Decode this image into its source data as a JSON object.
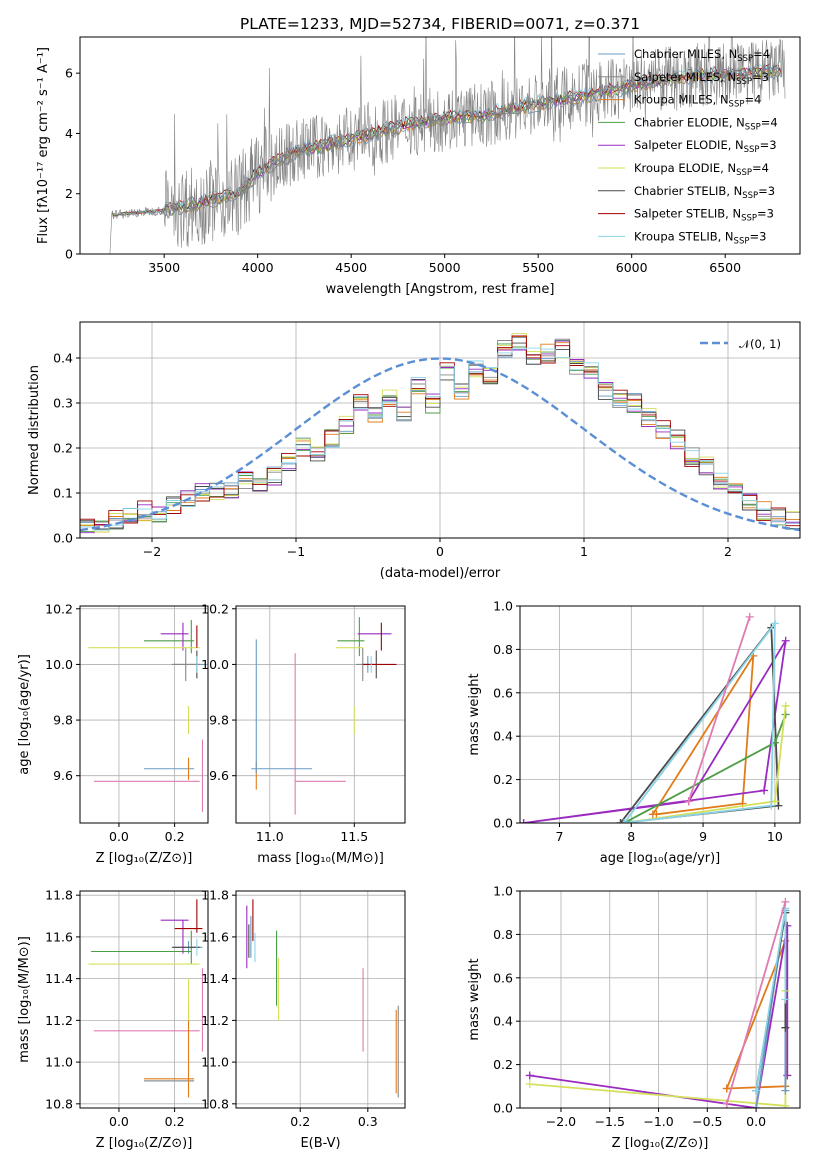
{
  "figure_title": "PLATE=1233, MJD=52734, FIBERID=0071, z=0.371",
  "series_colors": [
    "#6a9ac4",
    "#888888",
    "#e07b1a",
    "#4c9e45",
    "#9a2ac0",
    "#d4e05a",
    "#4a4a4a",
    "#a00000",
    "#8ad3e6"
  ],
  "chart_data": [
    {
      "id": "spectrum",
      "type": "line",
      "title": "PLATE=1233, MJD=52734, FIBERID=0071, z=0.371",
      "xlabel": "wavelength [Angstrom, rest frame]",
      "ylabel": "Flux [fλ10⁻¹⁷ erg cm⁻² s⁻¹ A⁻¹]",
      "xlim": [
        3050,
        6900
      ],
      "ylim": [
        0,
        7.2
      ],
      "xticks": [
        3500,
        4000,
        4500,
        5000,
        5500,
        6000,
        6500
      ],
      "yticks": [
        0,
        2,
        4,
        6
      ],
      "grid": false,
      "legend_position": "top-right",
      "observed_anchors": {
        "x": [
          3220,
          3500,
          3700,
          3900,
          4000,
          4200,
          4500,
          4800,
          5000,
          5200,
          5500,
          5800,
          6000,
          6300,
          6600,
          6800
        ],
        "y": [
          1.3,
          1.45,
          1.7,
          2.0,
          2.7,
          3.4,
          3.8,
          4.3,
          4.5,
          4.6,
          5.0,
          5.3,
          5.6,
          5.9,
          6.0,
          6.1
        ]
      },
      "observed_color": "#808080",
      "series": [
        {
          "name": "Chabrier MILES, N_SSP=4"
        },
        {
          "name": "Salpeter MILES, N_SSP=3"
        },
        {
          "name": "Kroupa MILES, N_SSP=4"
        },
        {
          "name": "Chabrier ELODIE, N_SSP=4"
        },
        {
          "name": "Salpeter ELODIE, N_SSP=3"
        },
        {
          "name": "Kroupa ELODIE, N_SSP=4"
        },
        {
          "name": "Chabrier STELIB, N_SSP=3"
        },
        {
          "name": "Salpeter STELIB, N_SSP=3"
        },
        {
          "name": "Kroupa STELIB, N_SSP=3"
        }
      ],
      "legend_entries": [
        {
          "label": "Chabrier MILES, N",
          "sub": "SSP",
          "value": "=4"
        },
        {
          "label": "Salpeter MILES, N",
          "sub": "SSP",
          "value": "=3"
        },
        {
          "label": "Kroupa MILES, N",
          "sub": "SSP",
          "value": "=4"
        },
        {
          "label": "Chabrier ELODIE, N",
          "sub": "SSP",
          "value": "=4"
        },
        {
          "label": "Salpeter ELODIE, N",
          "sub": "SSP",
          "value": "=3"
        },
        {
          "label": "Kroupa ELODIE, N",
          "sub": "SSP",
          "value": "=4"
        },
        {
          "label": "Chabrier STELIB, N",
          "sub": "SSP",
          "value": "=3"
        },
        {
          "label": "Salpeter STELIB, N",
          "sub": "SSP",
          "value": "=3"
        },
        {
          "label": "Kroupa STELIB, N",
          "sub": "SSP",
          "value": "=3"
        }
      ]
    },
    {
      "id": "residuals",
      "type": "histogram",
      "xlabel": "(data-model)/error",
      "ylabel": "Normed distribution",
      "xlim": [
        -2.5,
        2.5
      ],
      "ylim": [
        0,
        0.48
      ],
      "xticks": [
        -2,
        -1,
        0,
        1,
        2
      ],
      "yticks": [
        0.0,
        0.1,
        0.2,
        0.3,
        0.4
      ],
      "grid": true,
      "legend_position": "top-right",
      "legend_label": "𝒩(0, 1)",
      "gaussian": {
        "mean": 0,
        "sigma": 1,
        "color": "#5b8fd6"
      },
      "bin_edges_start": -2.5,
      "bin_width": 0.1,
      "nbins": 50,
      "base_hist": [
        0.03,
        0.02,
        0.04,
        0.05,
        0.06,
        0.05,
        0.07,
        0.09,
        0.1,
        0.1,
        0.11,
        0.13,
        0.11,
        0.14,
        0.17,
        0.2,
        0.19,
        0.22,
        0.25,
        0.3,
        0.28,
        0.31,
        0.27,
        0.34,
        0.3,
        0.37,
        0.32,
        0.38,
        0.36,
        0.42,
        0.44,
        0.4,
        0.41,
        0.42,
        0.38,
        0.37,
        0.33,
        0.31,
        0.3,
        0.27,
        0.24,
        0.22,
        0.18,
        0.16,
        0.13,
        0.11,
        0.08,
        0.06,
        0.05,
        0.04
      ]
    },
    {
      "id": "age_vs_Z",
      "type": "errorbar",
      "xlabel": "Z [log₁₀(Z/Z⊙)]",
      "ylabel": "age  [log₁₀(age/yr)]",
      "xlim": [
        -0.14,
        0.32
      ],
      "ylim": [
        9.43,
        10.21
      ],
      "xticks": [
        0.0,
        0.2
      ],
      "yticks": [
        9.6,
        9.8,
        10.0,
        10.2
      ],
      "grid": true,
      "points": [
        {
          "s": 0,
          "x": 0.25,
          "y": 10.0,
          "xe": 0.06,
          "ye": 0.0
        },
        {
          "s": 0,
          "x": 0.18,
          "y": 9.625,
          "xe": 0.09,
          "ye": 0.0
        },
        {
          "s": 1,
          "x": 0.24,
          "y": 10.0,
          "xe": 0.05,
          "ye": 0.06
        },
        {
          "s": 2,
          "x": 0.25,
          "y": 9.625,
          "xe": 0.0,
          "ye": 0.04
        },
        {
          "s": 3,
          "x": 0.18,
          "y": 10.085,
          "xe": 0.09,
          "ye": 0.0
        },
        {
          "s": 3,
          "x": 0.26,
          "y": 10.1,
          "xe": 0.0,
          "ye": 0.06
        },
        {
          "s": 4,
          "x": 0.2,
          "y": 10.11,
          "xe": 0.05,
          "ye": 0.0
        },
        {
          "s": 4,
          "x": 0.23,
          "y": 10.1,
          "xe": 0.0,
          "ye": 0.05
        },
        {
          "s": 5,
          "x": 0.09,
          "y": 10.06,
          "xe": 0.2,
          "ye": 0.0
        },
        {
          "s": 5,
          "x": 0.25,
          "y": 9.8,
          "xe": 0.0,
          "ye": 0.05
        },
        {
          "s": 6,
          "x": 0.28,
          "y": 10.0,
          "xe": 0.0,
          "ye": 0.05
        },
        {
          "s": 7,
          "x": 0.28,
          "y": 10.1,
          "xe": 0.0,
          "ye": 0.04
        },
        {
          "s": 8,
          "x": 0.28,
          "y": 10.0,
          "xe": 0.0,
          "ye": 0.03
        }
      ],
      "pink_points": [
        {
          "x": 0.1,
          "y": 9.58,
          "xe": 0.19,
          "ye": 0.0
        },
        {
          "x": 0.3,
          "y": 9.6,
          "xe": 0.0,
          "ye": 0.13
        }
      ]
    },
    {
      "id": "age_vs_mass",
      "type": "errorbar",
      "xlabel": "mass [log₁₀(M/M⊙)]",
      "xlim": [
        10.8,
        11.8
      ],
      "ylim": [
        9.43,
        10.21
      ],
      "xticks": [
        11.0,
        11.5
      ],
      "yticks": [
        9.6,
        9.8,
        10.0,
        10.2
      ],
      "grid": true,
      "points": [
        {
          "s": 0,
          "x": 11.07,
          "y": 9.625,
          "xe": 0.18,
          "ye": 0.0
        },
        {
          "s": 0,
          "x": 11.58,
          "y": 10.0,
          "xe": 0.04,
          "ye": 0.03
        },
        {
          "s": 1,
          "x": 11.55,
          "y": 10.0,
          "xe": 0.04,
          "ye": 0.06
        },
        {
          "s": 2,
          "x": 10.92,
          "y": 9.6,
          "xe": 0.0,
          "ye": 0.05
        },
        {
          "s": 3,
          "x": 11.48,
          "y": 10.085,
          "xe": 0.08,
          "ye": 0.0
        },
        {
          "s": 3,
          "x": 11.53,
          "y": 10.1,
          "xe": 0.0,
          "ye": 0.07
        },
        {
          "s": 4,
          "x": 11.62,
          "y": 10.11,
          "xe": 0.1,
          "ye": 0.0
        },
        {
          "s": 5,
          "x": 11.47,
          "y": 10.06,
          "xe": 0.08,
          "ye": 0.0
        },
        {
          "s": 5,
          "x": 11.5,
          "y": 9.8,
          "xe": 0.0,
          "ye": 0.05
        },
        {
          "s": 6,
          "x": 11.63,
          "y": 10.0,
          "xe": 0.0,
          "ye": 0.05
        },
        {
          "s": 7,
          "x": 11.65,
          "y": 10.0,
          "xe": 0.1,
          "ye": 0.0
        },
        {
          "s": 7,
          "x": 11.66,
          "y": 10.1,
          "xe": 0.0,
          "ye": 0.05
        },
        {
          "s": 8,
          "x": 11.6,
          "y": 10.0,
          "xe": 0.0,
          "ye": 0.03
        },
        {
          "s": 0,
          "x": 10.92,
          "y": 9.85,
          "xe": 0.0,
          "ye": 0.24
        }
      ],
      "pink_points": [
        {
          "x": 11.3,
          "y": 9.58,
          "xe": 0.15,
          "ye": 0.0
        },
        {
          "x": 11.15,
          "y": 9.75,
          "xe": 0.0,
          "ye": 0.29
        }
      ]
    },
    {
      "id": "weight_vs_age",
      "type": "line",
      "xlabel": "age  [log₁₀(age/yr)]",
      "ylabel": "mass weight",
      "xlim": [
        6.45,
        10.35
      ],
      "ylim": [
        0,
        1.0
      ],
      "xticks": [
        7,
        8,
        9,
        10
      ],
      "yticks": [
        0.0,
        0.2,
        0.4,
        0.6,
        0.8,
        1.0
      ],
      "grid": true,
      "series": [
        {
          "s": 2,
          "x": [
            8.35,
            9.55,
            9.7,
            8.3
          ],
          "y": [
            0.04,
            0.09,
            0.77,
            0.04
          ]
        },
        {
          "s": 4,
          "x": [
            6.5,
            9.85,
            10.15,
            8.8,
            6.5
          ],
          "y": [
            0.0,
            0.15,
            0.84,
            0.1,
            0.0
          ]
        },
        {
          "s": 6,
          "x": [
            7.85,
            9.95,
            10.05,
            7.85
          ],
          "y": [
            0.0,
            0.9,
            0.08,
            0.0
          ]
        },
        {
          "s": 3,
          "x": [
            7.9,
            10.0,
            10.15
          ],
          "y": [
            0.0,
            0.37,
            0.5
          ]
        },
        {
          "s": 5,
          "x": [
            7.9,
            10.0,
            10.15
          ],
          "y": [
            0.0,
            0.1,
            0.54
          ]
        },
        {
          "s": 8,
          "x": [
            7.9,
            9.95,
            10.0,
            7.9
          ],
          "y": [
            0.0,
            0.08,
            0.92,
            0.0
          ]
        },
        {
          "s": 9,
          "x": [
            8.8,
            9.65
          ],
          "y": [
            0.1,
            0.95
          ]
        }
      ]
    },
    {
      "id": "mass_vs_Z",
      "type": "errorbar",
      "xlabel": "Z [log₁₀(Z/Z⊙)]",
      "ylabel": "mass [log₁₀(M/M⊙)]",
      "xlim": [
        -0.14,
        0.32
      ],
      "ylim": [
        10.78,
        11.82
      ],
      "xticks": [
        0.0,
        0.2
      ],
      "yticks": [
        10.8,
        11.0,
        11.2,
        11.4,
        11.6,
        11.8
      ],
      "grid": true,
      "points": [
        {
          "s": 0,
          "x": 0.18,
          "y": 10.91,
          "xe": 0.09,
          "ye": 0.0
        },
        {
          "s": 0,
          "x": 0.25,
          "y": 11.55,
          "xe": 0.05,
          "ye": 0.03
        },
        {
          "s": 1,
          "x": 0.18,
          "y": 10.91,
          "xe": 0.09,
          "ye": 0.0
        },
        {
          "s": 2,
          "x": 0.25,
          "y": 11.05,
          "xe": 0.0,
          "ye": 0.22
        },
        {
          "s": 2,
          "x": 0.18,
          "y": 10.92,
          "xe": 0.09,
          "ye": 0.0
        },
        {
          "s": 3,
          "x": 0.08,
          "y": 11.53,
          "xe": 0.18,
          "ye": 0.0
        },
        {
          "s": 3,
          "x": 0.26,
          "y": 11.55,
          "xe": 0.0,
          "ye": 0.08
        },
        {
          "s": 4,
          "x": 0.2,
          "y": 11.68,
          "xe": 0.05,
          "ye": 0.0
        },
        {
          "s": 4,
          "x": 0.23,
          "y": 11.6,
          "xe": 0.0,
          "ye": 0.08
        },
        {
          "s": 5,
          "x": 0.09,
          "y": 11.47,
          "xe": 0.2,
          "ye": 0.0
        },
        {
          "s": 5,
          "x": 0.25,
          "y": 11.3,
          "xe": 0.0,
          "ye": 0.1
        },
        {
          "s": 6,
          "x": 0.24,
          "y": 11.55,
          "xe": 0.05,
          "ye": 0.0
        },
        {
          "s": 7,
          "x": 0.25,
          "y": 11.64,
          "xe": 0.05,
          "ye": 0.0
        },
        {
          "s": 7,
          "x": 0.28,
          "y": 11.7,
          "xe": 0.0,
          "ye": 0.08
        },
        {
          "s": 8,
          "x": 0.28,
          "y": 11.55,
          "xe": 0.0,
          "ye": 0.04
        }
      ],
      "pink_points": [
        {
          "x": 0.1,
          "y": 11.15,
          "xe": 0.19,
          "ye": 0.0
        },
        {
          "x": 0.3,
          "y": 11.25,
          "xe": 0.0,
          "ye": 0.2
        }
      ]
    },
    {
      "id": "mass_vs_ebv",
      "type": "errorbar",
      "xlabel": "E(B-V)",
      "xlim": [
        0.105,
        0.355
      ],
      "ylim": [
        10.78,
        11.82
      ],
      "xticks": [
        0.2,
        0.3
      ],
      "yticks": [
        10.8,
        11.0,
        11.2,
        11.4,
        11.6,
        11.8
      ],
      "grid": true,
      "points": [
        {
          "s": 0,
          "x": 0.127,
          "y": 11.6,
          "xe": 0.0,
          "ye": 0.1
        },
        {
          "s": 1,
          "x": 0.345,
          "y": 11.05,
          "xe": 0.0,
          "ye": 0.22
        },
        {
          "s": 2,
          "x": 0.342,
          "y": 11.05,
          "xe": 0.0,
          "ye": 0.2
        },
        {
          "s": 3,
          "x": 0.165,
          "y": 11.45,
          "xe": 0.0,
          "ye": 0.18
        },
        {
          "s": 4,
          "x": 0.121,
          "y": 11.6,
          "xe": 0.0,
          "ye": 0.15
        },
        {
          "s": 5,
          "x": 0.168,
          "y": 11.35,
          "xe": 0.0,
          "ye": 0.15
        },
        {
          "s": 6,
          "x": 0.124,
          "y": 11.58,
          "xe": 0.0,
          "ye": 0.08
        },
        {
          "s": 7,
          "x": 0.13,
          "y": 11.68,
          "xe": 0.0,
          "ye": 0.1
        },
        {
          "s": 8,
          "x": 0.133,
          "y": 11.55,
          "xe": 0.0,
          "ye": 0.07
        }
      ],
      "pink_points": [
        {
          "x": 0.293,
          "y": 11.25,
          "xe": 0.0,
          "ye": 0.2
        }
      ]
    },
    {
      "id": "weight_vs_Z",
      "type": "line",
      "xlabel": "Z [log₁₀(Z/Z⊙)]",
      "ylabel": "mass weight",
      "xlim": [
        -2.42,
        0.45
      ],
      "ylim": [
        0,
        1.0
      ],
      "xticks": [
        -2.0,
        -1.5,
        -1.0,
        -0.5,
        0.0
      ],
      "yticks": [
        0.0,
        0.2,
        0.4,
        0.6,
        0.8,
        1.0
      ],
      "grid": true,
      "series": [
        {
          "s": 2,
          "x": [
            -0.3,
            0.3,
            0.3,
            -0.3
          ],
          "y": [
            0.09,
            0.1,
            0.77,
            0.09
          ]
        },
        {
          "s": 4,
          "x": [
            -2.32,
            0.0,
            0.32,
            0.32
          ],
          "y": [
            0.15,
            0.0,
            0.84,
            0.15
          ]
        },
        {
          "s": 5,
          "x": [
            -2.32,
            0.3,
            0.3
          ],
          "y": [
            0.11,
            0.01,
            0.54
          ]
        },
        {
          "s": 0,
          "x": [
            0.0,
            0.3,
            0.3
          ],
          "y": [
            0.0,
            0.91,
            0.08
          ]
        },
        {
          "s": 6,
          "x": [
            0.0,
            0.3,
            0.3
          ],
          "y": [
            0.08,
            0.9,
            0.37
          ]
        },
        {
          "s": 8,
          "x": [
            0.0,
            0.3,
            0.3
          ],
          "y": [
            0.08,
            0.92,
            0.5
          ]
        },
        {
          "s": 9,
          "x": [
            -0.3,
            0.3
          ],
          "y": [
            0.02,
            0.95
          ]
        }
      ]
    }
  ]
}
